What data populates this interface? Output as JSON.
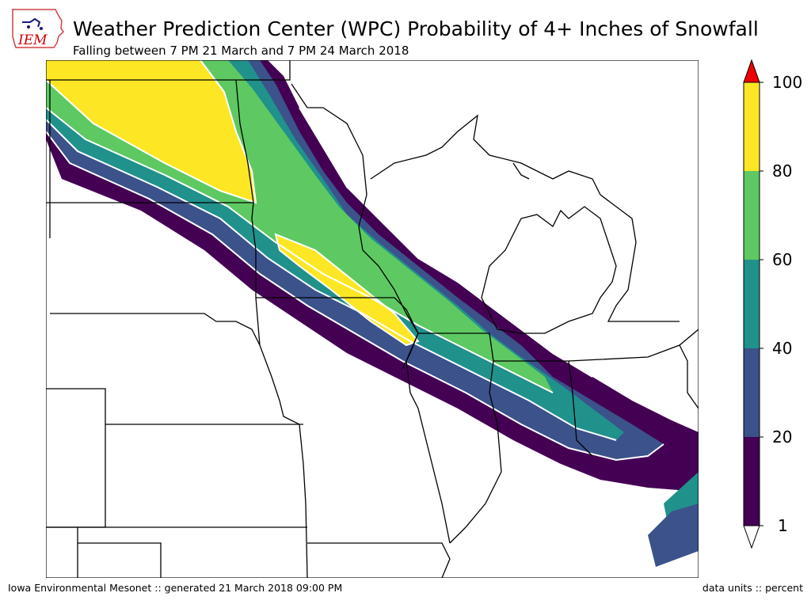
{
  "header": {
    "title": "Weather Prediction Center (WPC) Probability of 4+ Inches of Snowfall",
    "subtitle": "Falling between 7 PM 21 March and 7 PM 24 March 2018"
  },
  "logo": {
    "text": "IEM",
    "color": "#cc0000"
  },
  "colorbar": {
    "levels": [
      {
        "value": "100",
        "color": "#fde725"
      },
      {
        "value": "80",
        "color": "#5ec962"
      },
      {
        "value": "60",
        "color": "#21918c"
      },
      {
        "value": "40",
        "color": "#3b528b"
      },
      {
        "value": "20",
        "color": "#440154"
      },
      {
        "value": "1",
        "color": "#ffffff"
      }
    ],
    "over_color": "#ee0000",
    "under_color": "#ffffff"
  },
  "footer": {
    "source": "Iowa Environmental Mesonet :: generated 21 March 2018 09:00 PM",
    "units": "data units :: percent"
  },
  "colors": {
    "band_1_20": "#440154",
    "band_20_40": "#3b528b",
    "band_40_60": "#21918c",
    "band_60_80": "#5ec962",
    "band_80_100": "#fde725"
  }
}
